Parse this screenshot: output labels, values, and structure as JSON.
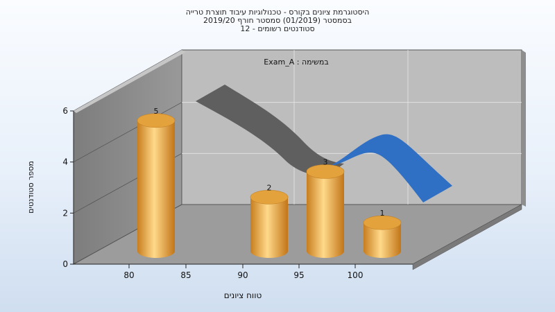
{
  "title_lines": [
    "היסטוגרמת ציונים בקורס - טכנולוגיות עיבוד תוצרת טרייה",
    "בסמסטר  (01/2019)  סמסטר חורף 2019/20",
    "סטודנטים רשומים - 12"
  ],
  "chart_data": {
    "type": "bar",
    "title": "היסטוגרמת ציונים בקורס - טכנולוגיות עיבוד תוצרת טרייה",
    "annotation": "Exam_A : במשימה",
    "xlabel": "טווח ציונים",
    "ylabel": "מספר סטודנטים",
    "x_ticks": [
      "80",
      "85",
      "90",
      "95",
      "100"
    ],
    "y_ticks": [
      "0",
      "2",
      "4",
      "6"
    ],
    "ylim": [
      0,
      6
    ],
    "bins": [
      80,
      85,
      90,
      95,
      100
    ],
    "values": [
      5,
      0,
      2,
      3,
      1
    ],
    "data_labels": [
      "5",
      "",
      "2",
      "3",
      "1"
    ],
    "bar_color": "#e8a23a",
    "curve_color_gray": "#5f5f5f",
    "curve_color_blue": "#2f6fc4"
  }
}
